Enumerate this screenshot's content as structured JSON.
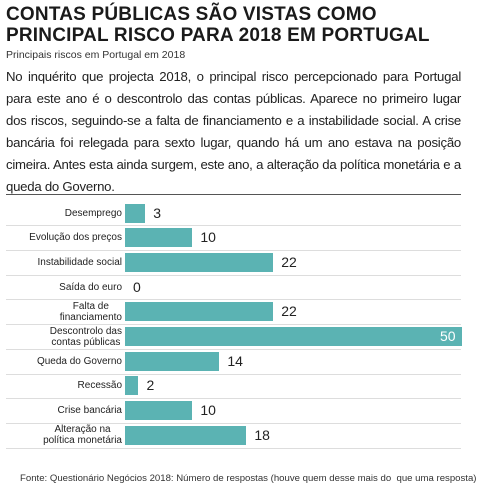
{
  "header": {
    "title": "CONTAS PÚBLICAS SÃO VISTAS COMO PRINCIPAL RISCO PARA 2018 EM PORTUGAL",
    "body": "No inquérito que projecta 2018, o principal risco percepcionado para Portugal para este ano é o descontrolo das contas públicas. Aparece no primeiro lugar dos riscos, seguindo-se a falta de financiamento e a instabilidade social. A crise bancária foi relegada para sexto lugar, quando há um ano estava na posição cimeira. Antes esta ainda surgem, este ano, a alteração da política monetária e a queda do Governo."
  },
  "chart_data": {
    "type": "bar",
    "orientation": "horizontal",
    "title": "Principais riscos em Portugal em 2018",
    "categories": [
      "Desemprego",
      "Evolução dos preços",
      "Instabilidade social",
      "Saída do euro",
      "Falta de\nfinanciamento",
      "Descontrolo das\ncontas públicas",
      "Queda do Governo",
      "Recessão",
      "Crise bancária",
      "Alteração na\npolítica monetária"
    ],
    "values": [
      3,
      10,
      22,
      0,
      22,
      50,
      14,
      2,
      10,
      18
    ],
    "color": "#5bb3b3",
    "source": "Fonte: Questionário Negócios 2018: Número de respostas (houve quem desse mais do  que uma resposta)"
  }
}
